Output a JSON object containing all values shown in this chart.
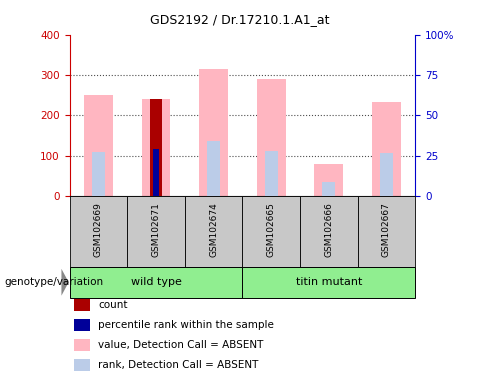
{
  "title": "GDS2192 / Dr.17210.1.A1_at",
  "samples": [
    "GSM102669",
    "GSM102671",
    "GSM102674",
    "GSM102665",
    "GSM102666",
    "GSM102667"
  ],
  "pink_values": [
    250,
    240,
    315,
    290,
    80,
    232
  ],
  "light_blue_values": [
    108,
    115,
    135,
    112,
    35,
    106
  ],
  "dark_red_values": [
    0,
    240,
    0,
    0,
    0,
    0
  ],
  "blue_values": [
    0,
    115,
    0,
    0,
    0,
    0
  ],
  "left_ylim": [
    0,
    400
  ],
  "right_ylim": [
    0,
    100
  ],
  "left_yticks": [
    0,
    100,
    200,
    300,
    400
  ],
  "right_yticks": [
    0,
    25,
    50,
    75,
    100
  ],
  "right_yticklabels": [
    "0",
    "25",
    "50",
    "75",
    "100%"
  ],
  "pink_color": "#FFB6C1",
  "light_blue_color": "#BBCCE8",
  "dark_red_color": "#AA0000",
  "blue_color": "#000099",
  "label_color_left": "#CC0000",
  "label_color_right": "#0000CC",
  "grid_yticks": [
    100,
    200,
    300
  ],
  "sample_bg_color": "#C8C8C8",
  "group_wt_color": "#90EE90",
  "group_tm_color": "#90EE90",
  "group_wt_label": "wild type",
  "group_tm_label": "titin mutant",
  "genotype_label": "genotype/variation",
  "title_fontsize": 9,
  "legend_items": [
    {
      "label": "count",
      "color": "#AA0000"
    },
    {
      "label": "percentile rank within the sample",
      "color": "#000099"
    },
    {
      "label": "value, Detection Call = ABSENT",
      "color": "#FFB6C1"
    },
    {
      "label": "rank, Detection Call = ABSENT",
      "color": "#BBCCE8"
    }
  ]
}
